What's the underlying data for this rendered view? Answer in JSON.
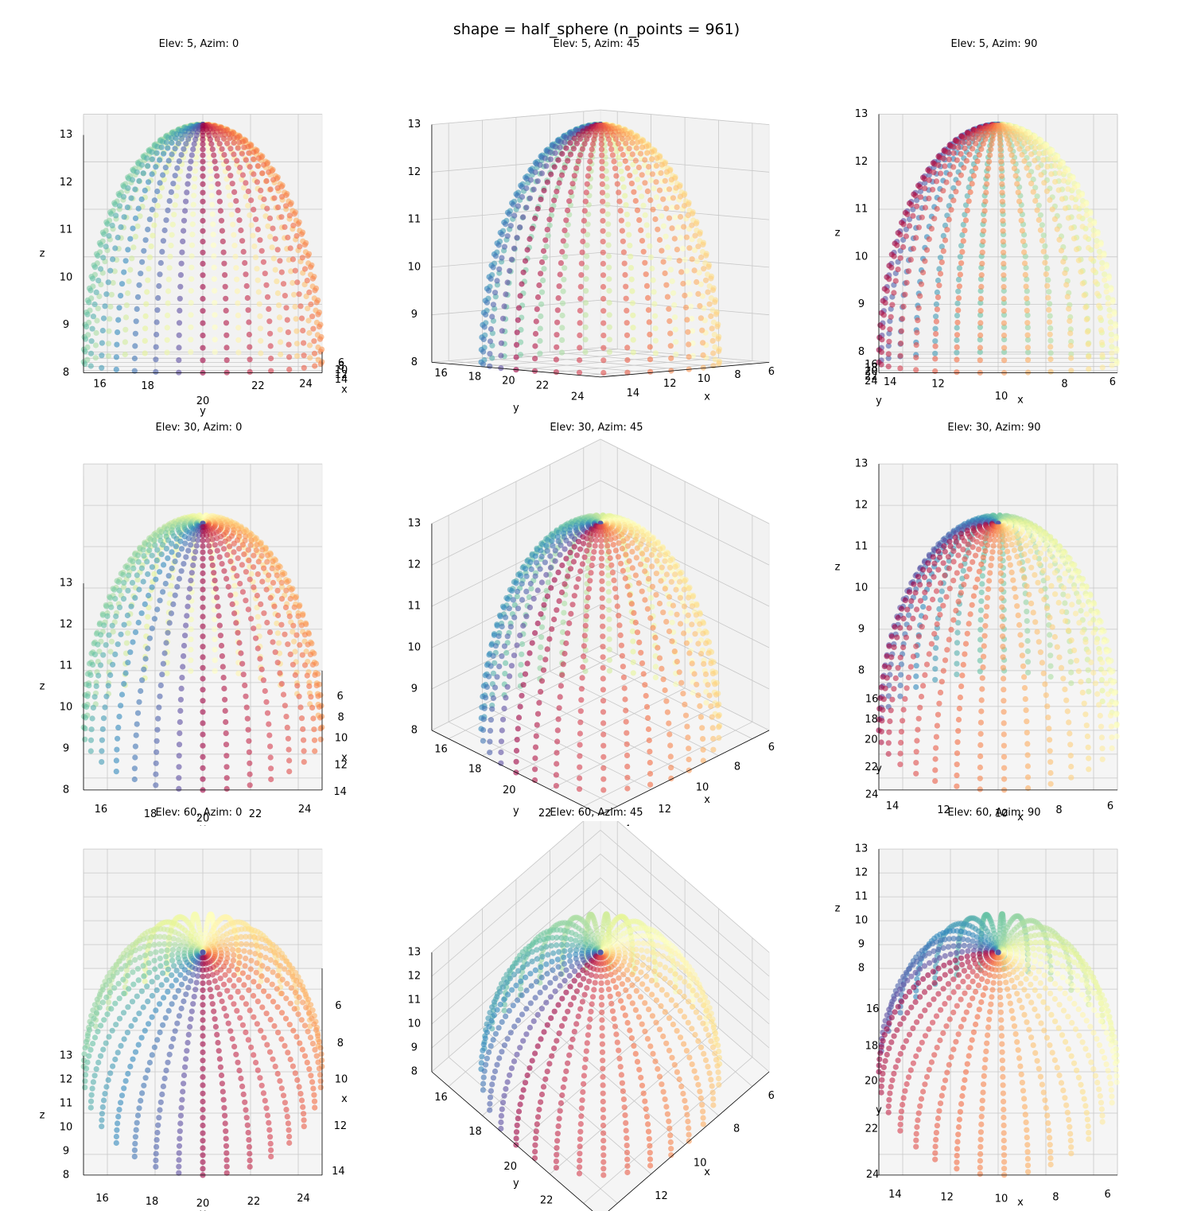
{
  "chart_data": {
    "type": "scatter",
    "title": "shape = half_sphere (n_points = 961)",
    "shape": "half_sphere",
    "n_points": 961,
    "center": [
      10,
      20,
      8
    ],
    "radius": 5,
    "colormap": "Spectral",
    "axis_labels": {
      "x": "x",
      "y": "y",
      "z": "z"
    },
    "xlim": [
      5,
      15
    ],
    "ylim": [
      15,
      25
    ],
    "zlim": [
      8,
      13
    ],
    "ticks": {
      "x": [
        "6",
        "8",
        "10",
        "12",
        "14"
      ],
      "y": [
        "16",
        "18",
        "20",
        "22",
        "24"
      ],
      "z": [
        "8",
        "9",
        "10",
        "11",
        "12",
        "13"
      ]
    },
    "grid": true,
    "subplots": [
      {
        "title": "Elev: 5, Azim: 0",
        "elev": 5,
        "azim": 0
      },
      {
        "title": "Elev: 5, Azim: 45",
        "elev": 5,
        "azim": 45
      },
      {
        "title": "Elev: 5, Azim: 90",
        "elev": 5,
        "azim": 90
      },
      {
        "title": "Elev: 30, Azim: 0",
        "elev": 30,
        "azim": 0
      },
      {
        "title": "Elev: 30, Azim: 45",
        "elev": 30,
        "azim": 45
      },
      {
        "title": "Elev: 30, Azim: 90",
        "elev": 30,
        "azim": 90
      },
      {
        "title": "Elev: 60, Azim: 0",
        "elev": 60,
        "azim": 0
      },
      {
        "title": "Elev: 60, Azim: 45",
        "elev": 60,
        "azim": 45
      },
      {
        "title": "Elev: 60, Azim: 90",
        "elev": 60,
        "azim": 90
      }
    ]
  }
}
